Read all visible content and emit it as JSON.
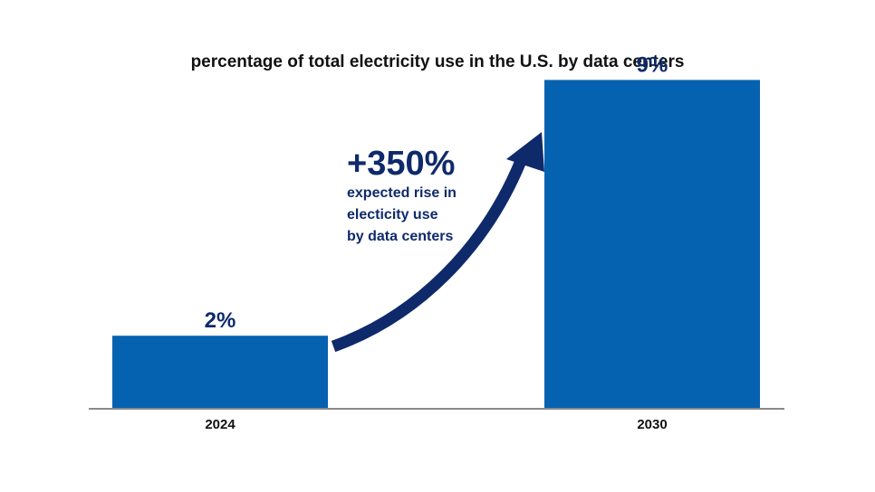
{
  "colors": {
    "bar": "#0462b1",
    "accent_dark": "#0f2a6b",
    "axis": "#8a8a8a"
  },
  "chart_data": {
    "type": "bar",
    "title": "percentage of total electricity use in the U.S. by data centers",
    "categories": [
      "2024",
      "2030"
    ],
    "values": [
      2,
      9
    ],
    "value_labels": [
      "2%",
      "9%"
    ],
    "xlabel": "",
    "ylabel": "",
    "ylim": [
      0,
      10
    ],
    "grid": false,
    "annotation": {
      "value": "+350%",
      "lines": [
        "expected rise in",
        "electicity use",
        "by data centers"
      ]
    }
  }
}
